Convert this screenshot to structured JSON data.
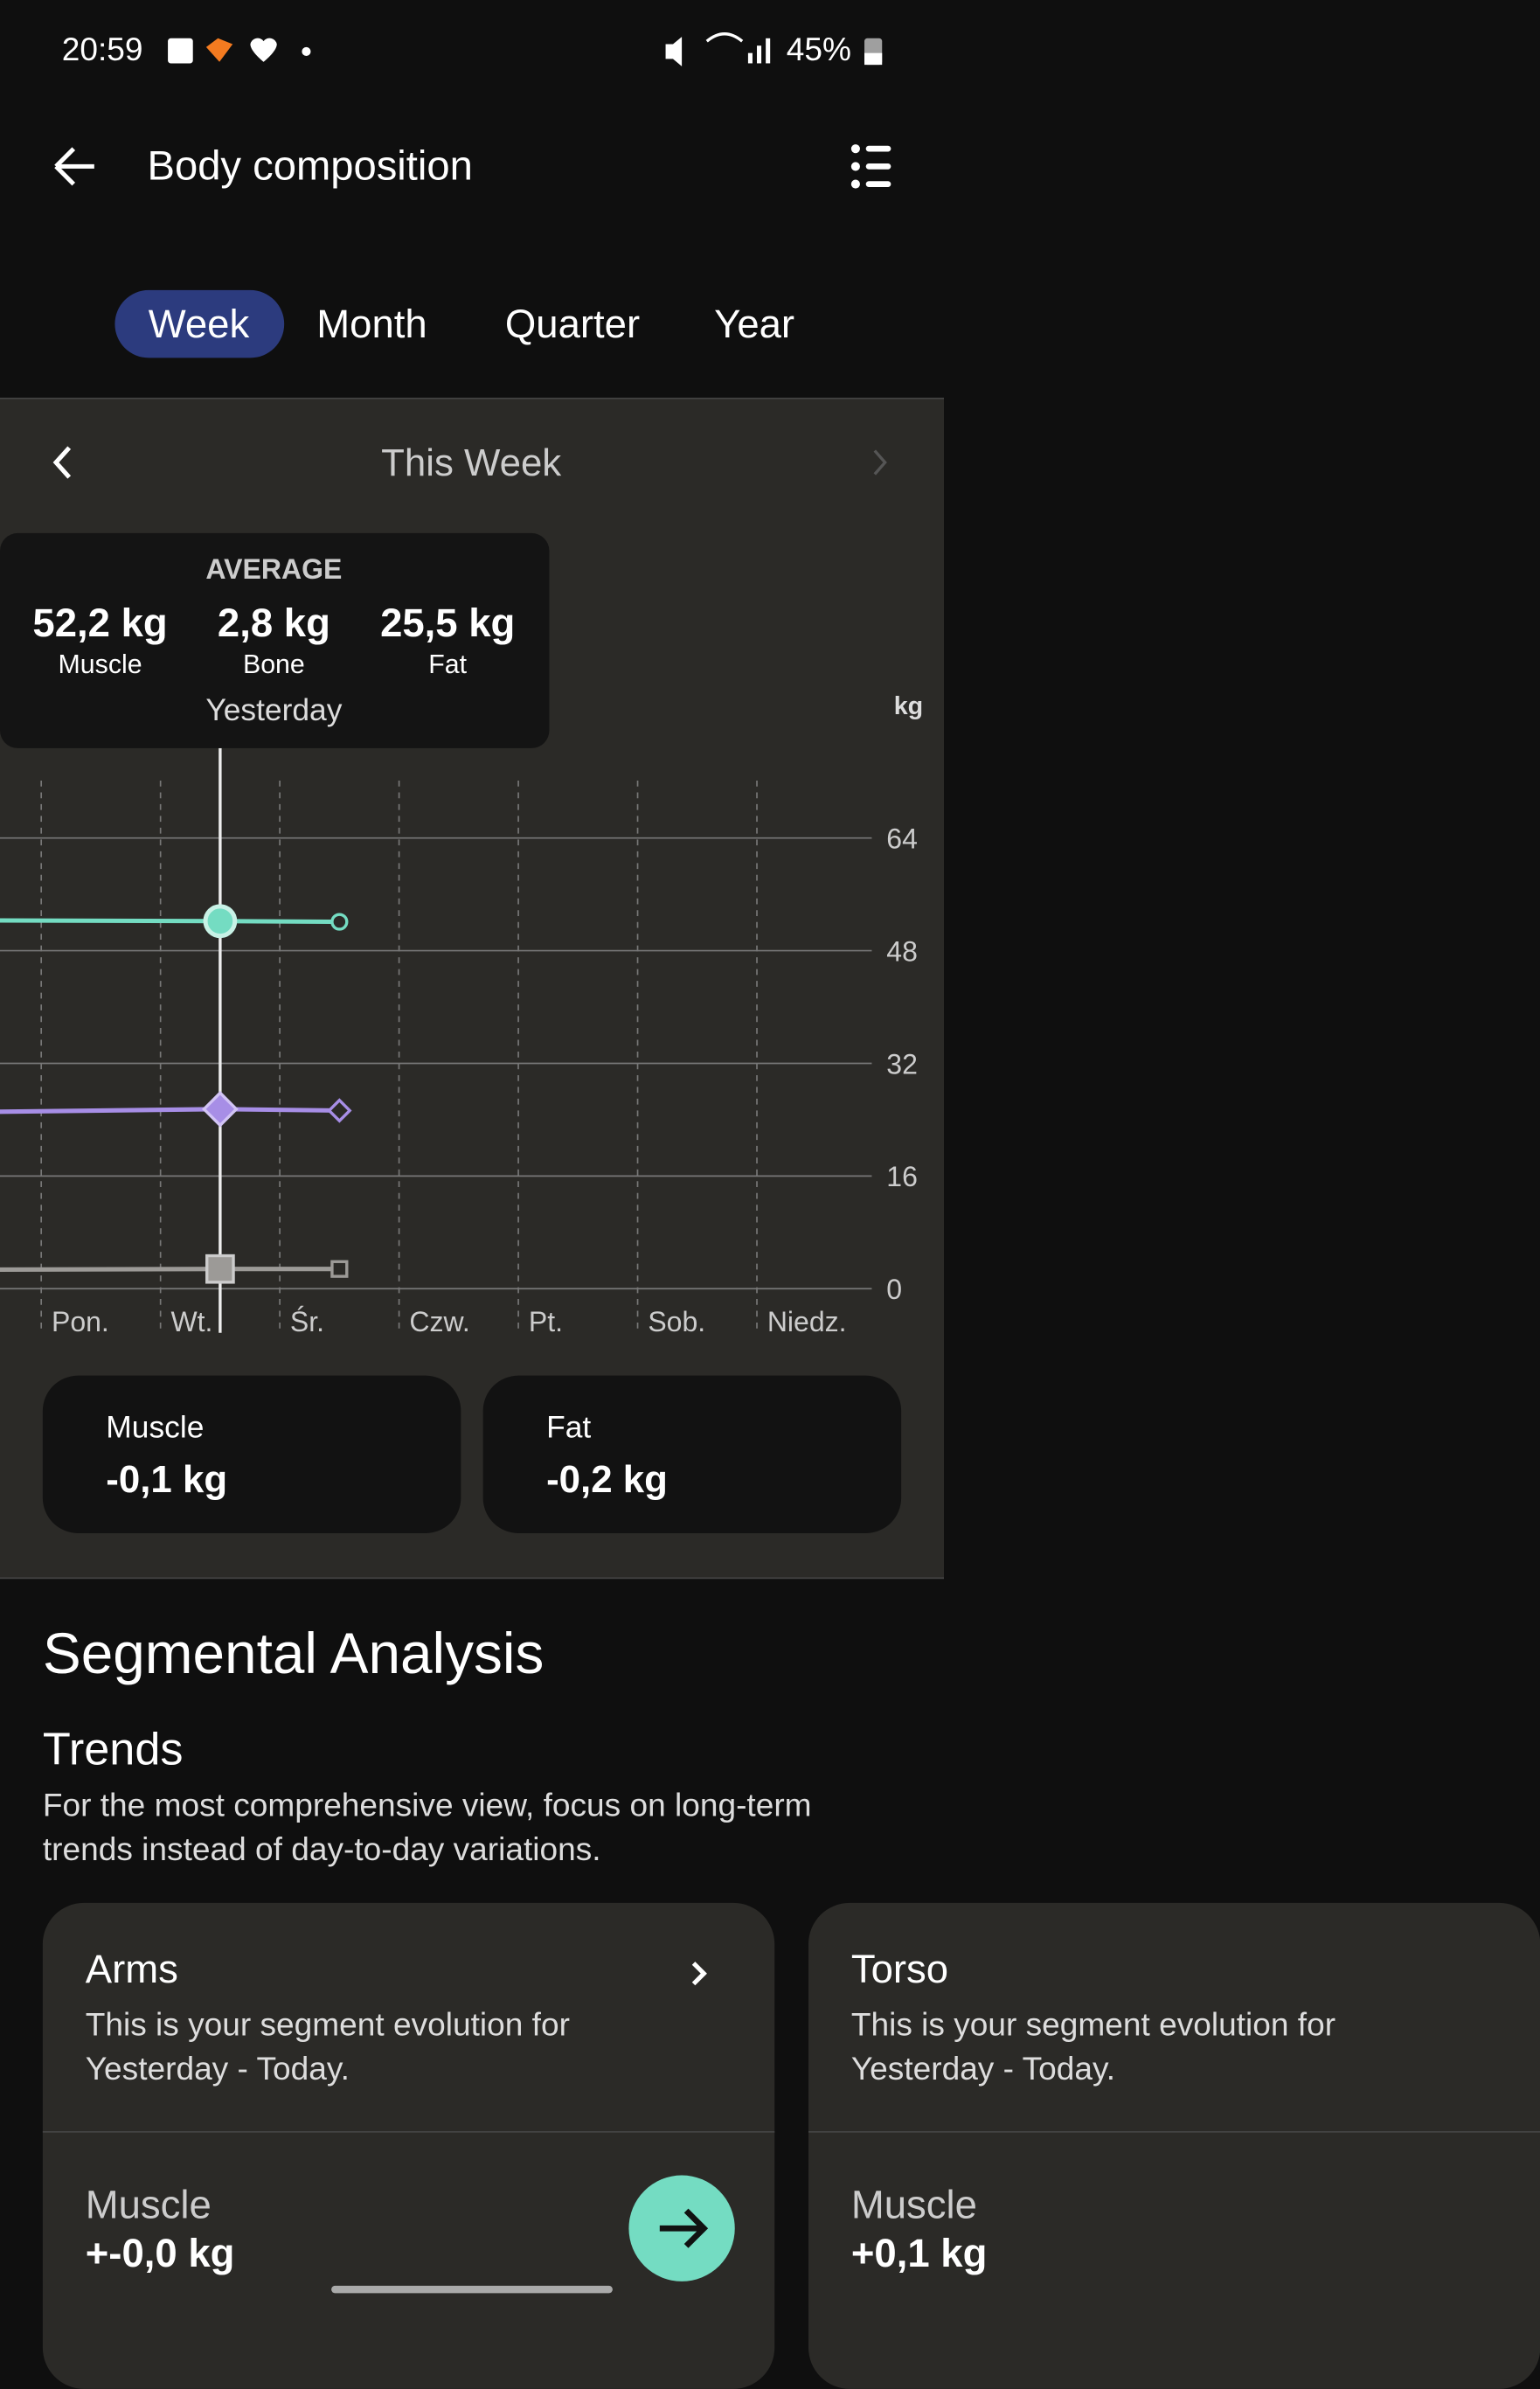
{
  "status_bar": {
    "time": "20:59",
    "battery": "45%"
  },
  "header": {
    "title": "Body composition"
  },
  "tabs": [
    "Week",
    "Month",
    "Quarter",
    "Year"
  ],
  "period": "This Week",
  "tooltip": {
    "heading": "AVERAGE",
    "items": [
      {
        "value": "52,2 kg",
        "label": "Muscle"
      },
      {
        "value": "2,8 kg",
        "label": "Bone"
      },
      {
        "value": "25,5 kg",
        "label": "Fat"
      }
    ],
    "date": "Yesterday"
  },
  "chart_data": {
    "type": "line",
    "y_unit": "kg",
    "categories": [
      "Pon.",
      "Wt.",
      "Śr.",
      "Czw.",
      "Pt.",
      "Sob.",
      "Niedz."
    ],
    "x": [
      -1,
      1,
      2
    ],
    "series": [
      {
        "color": "#74dcc2",
        "marker": "circle",
        "values": [
          52.3,
          52.2,
          52.1
        ]
      },
      {
        "color": "#a78ee6",
        "marker": "diamond",
        "values": [
          25.1,
          25.5,
          25.3
        ]
      },
      {
        "color": "#9c9a97",
        "marker": "square",
        "values": [
          2.7,
          2.8,
          2.8
        ]
      }
    ],
    "ylim": [
      0,
      64
    ],
    "yticks": [
      0,
      16,
      32,
      48,
      64
    ],
    "grid": true
  },
  "summary_cards": [
    {
      "label": "Muscle",
      "value": "-0,1 kg"
    },
    {
      "label": "Fat",
      "value": "-0,2 kg"
    }
  ],
  "segmental": {
    "title": "Segmental Analysis",
    "subtitle": "Trends",
    "description": "For the most comprehensive view, focus on long-term trends instead of day-to-day variations.",
    "cards": [
      {
        "title": "Arms",
        "text": "This is your segment evolution for Yesterday - Today.",
        "metric": "Muscle",
        "value": "+-0,0 kg"
      },
      {
        "title": "Torso",
        "text": "This is your segment evolution for Yesterday - Today.",
        "metric": "Muscle",
        "value": "+0,1 kg"
      }
    ]
  }
}
